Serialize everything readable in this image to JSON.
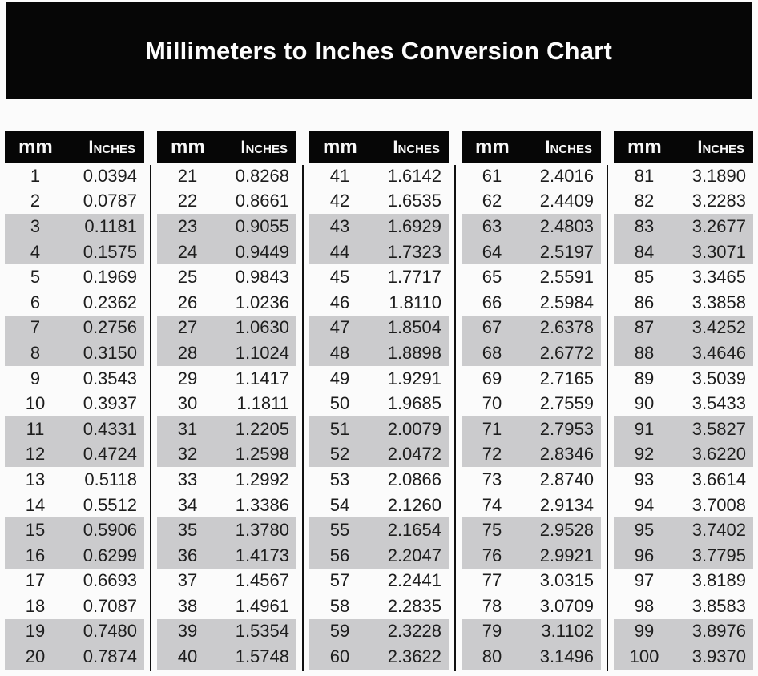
{
  "title": "Millimeters to Inches Conversion Chart",
  "colors": {
    "banner_bg": "#060606",
    "header_bg": "#060606",
    "shaded_row": "#cbcbcd",
    "text": "#1d1d1d"
  },
  "chart_data": {
    "type": "table",
    "title": "Millimeters to Inches Conversion Chart",
    "column_headers": {
      "mm": "mm",
      "inches": "Inches"
    },
    "layout": "5 side-by-side two-column tables, rows shaded gray in alternating pairs",
    "tables": [
      {
        "rows": [
          {
            "mm": "1",
            "in": "0.0394"
          },
          {
            "mm": "2",
            "in": "0.0787"
          },
          {
            "mm": "3",
            "in": "0.1181"
          },
          {
            "mm": "4",
            "in": "0.1575"
          },
          {
            "mm": "5",
            "in": "0.1969"
          },
          {
            "mm": "6",
            "in": "0.2362"
          },
          {
            "mm": "7",
            "in": "0.2756"
          },
          {
            "mm": "8",
            "in": "0.3150"
          },
          {
            "mm": "9",
            "in": "0.3543"
          },
          {
            "mm": "10",
            "in": "0.3937"
          },
          {
            "mm": "11",
            "in": "0.4331"
          },
          {
            "mm": "12",
            "in": "0.4724"
          },
          {
            "mm": "13",
            "in": "0.5118"
          },
          {
            "mm": "14",
            "in": "0.5512"
          },
          {
            "mm": "15",
            "in": "0.5906"
          },
          {
            "mm": "16",
            "in": "0.6299"
          },
          {
            "mm": "17",
            "in": "0.6693"
          },
          {
            "mm": "18",
            "in": "0.7087"
          },
          {
            "mm": "19",
            "in": "0.7480"
          },
          {
            "mm": "20",
            "in": "0.7874"
          }
        ]
      },
      {
        "rows": [
          {
            "mm": "21",
            "in": "0.8268"
          },
          {
            "mm": "22",
            "in": "0.8661"
          },
          {
            "mm": "23",
            "in": "0.9055"
          },
          {
            "mm": "24",
            "in": "0.9449"
          },
          {
            "mm": "25",
            "in": "0.9843"
          },
          {
            "mm": "26",
            "in": "1.0236"
          },
          {
            "mm": "27",
            "in": "1.0630"
          },
          {
            "mm": "28",
            "in": "1.1024"
          },
          {
            "mm": "29",
            "in": "1.1417"
          },
          {
            "mm": "30",
            "in": "1.1811"
          },
          {
            "mm": "31",
            "in": "1.2205"
          },
          {
            "mm": "32",
            "in": "1.2598"
          },
          {
            "mm": "33",
            "in": "1.2992"
          },
          {
            "mm": "34",
            "in": "1.3386"
          },
          {
            "mm": "35",
            "in": "1.3780"
          },
          {
            "mm": "36",
            "in": "1.4173"
          },
          {
            "mm": "37",
            "in": "1.4567"
          },
          {
            "mm": "38",
            "in": "1.4961"
          },
          {
            "mm": "39",
            "in": "1.5354"
          },
          {
            "mm": "40",
            "in": "1.5748"
          }
        ]
      },
      {
        "rows": [
          {
            "mm": "41",
            "in": "1.6142"
          },
          {
            "mm": "42",
            "in": "1.6535"
          },
          {
            "mm": "43",
            "in": "1.6929"
          },
          {
            "mm": "44",
            "in": "1.7323"
          },
          {
            "mm": "45",
            "in": "1.7717"
          },
          {
            "mm": "46",
            "in": "1.8110"
          },
          {
            "mm": "47",
            "in": "1.8504"
          },
          {
            "mm": "48",
            "in": "1.8898"
          },
          {
            "mm": "49",
            "in": "1.9291"
          },
          {
            "mm": "50",
            "in": "1.9685"
          },
          {
            "mm": "51",
            "in": "2.0079"
          },
          {
            "mm": "52",
            "in": "2.0472"
          },
          {
            "mm": "53",
            "in": "2.0866"
          },
          {
            "mm": "54",
            "in": "2.1260"
          },
          {
            "mm": "55",
            "in": "2.1654"
          },
          {
            "mm": "56",
            "in": "2.2047"
          },
          {
            "mm": "57",
            "in": "2.2441"
          },
          {
            "mm": "58",
            "in": "2.2835"
          },
          {
            "mm": "59",
            "in": "2.3228"
          },
          {
            "mm": "60",
            "in": "2.3622"
          }
        ]
      },
      {
        "rows": [
          {
            "mm": "61",
            "in": "2.4016"
          },
          {
            "mm": "62",
            "in": "2.4409"
          },
          {
            "mm": "63",
            "in": "2.4803"
          },
          {
            "mm": "64",
            "in": "2.5197"
          },
          {
            "mm": "65",
            "in": "2.5591"
          },
          {
            "mm": "66",
            "in": "2.5984"
          },
          {
            "mm": "67",
            "in": "2.6378"
          },
          {
            "mm": "68",
            "in": "2.6772"
          },
          {
            "mm": "69",
            "in": "2.7165"
          },
          {
            "mm": "70",
            "in": "2.7559"
          },
          {
            "mm": "71",
            "in": "2.7953"
          },
          {
            "mm": "72",
            "in": "2.8346"
          },
          {
            "mm": "73",
            "in": "2.8740"
          },
          {
            "mm": "74",
            "in": "2.9134"
          },
          {
            "mm": "75",
            "in": "2.9528"
          },
          {
            "mm": "76",
            "in": "2.9921"
          },
          {
            "mm": "77",
            "in": "3.0315"
          },
          {
            "mm": "78",
            "in": "3.0709"
          },
          {
            "mm": "79",
            "in": "3.1102"
          },
          {
            "mm": "80",
            "in": "3.1496"
          }
        ]
      },
      {
        "rows": [
          {
            "mm": "81",
            "in": "3.1890"
          },
          {
            "mm": "82",
            "in": "3.2283"
          },
          {
            "mm": "83",
            "in": "3.2677"
          },
          {
            "mm": "84",
            "in": "3.3071"
          },
          {
            "mm": "85",
            "in": "3.3465"
          },
          {
            "mm": "86",
            "in": "3.3858"
          },
          {
            "mm": "87",
            "in": "3.4252"
          },
          {
            "mm": "88",
            "in": "3.4646"
          },
          {
            "mm": "89",
            "in": "3.5039"
          },
          {
            "mm": "90",
            "in": "3.5433"
          },
          {
            "mm": "91",
            "in": "3.5827"
          },
          {
            "mm": "92",
            "in": "3.6220"
          },
          {
            "mm": "93",
            "in": "3.6614"
          },
          {
            "mm": "94",
            "in": "3.7008"
          },
          {
            "mm": "95",
            "in": "3.7402"
          },
          {
            "mm": "96",
            "in": "3.7795"
          },
          {
            "mm": "97",
            "in": "3.8189"
          },
          {
            "mm": "98",
            "in": "3.8583"
          },
          {
            "mm": "99",
            "in": "3.8976"
          },
          {
            "mm": "100",
            "in": "3.9370"
          }
        ]
      }
    ]
  }
}
